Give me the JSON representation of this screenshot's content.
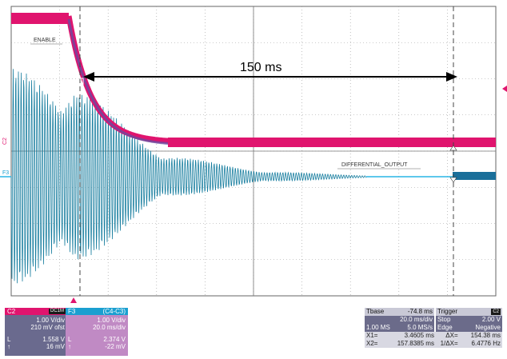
{
  "scope": {
    "span_label": "150 ms",
    "enable_label": "ENABLE",
    "output_label": "DIFFERENTIAL_OUTPUT",
    "c2_marker": "C2",
    "f3_marker": "F3",
    "colors": {
      "c2": "#e0146e",
      "f3": "#1a7fa0",
      "grid": "#9a9a9a",
      "cursor": "#444444"
    }
  },
  "channels": {
    "c2": {
      "name": "C2",
      "badge": "DC1M",
      "vdiv": "1.00 V/div",
      "offset": "210 mV ofst",
      "val1_label": "L",
      "val1": "1.558 V",
      "val2_label": "↑",
      "val2": "16 mV"
    },
    "f3": {
      "name": "F3",
      "formula": "(C4-C3)",
      "vdiv": "1.00 V/div",
      "tdiv": "20.0 ms/div",
      "val1_label": "L",
      "val1": "2.374 V",
      "val2_label": "↑",
      "val2": "-22 mV"
    }
  },
  "timebase": {
    "tbase_label": "Tbase",
    "tbase_value": "-74.8 ms",
    "trigger_label": "Trigger",
    "trigger_badge": "C2",
    "row1_left": "20.0 ms/div",
    "row1_mid": "Stop",
    "row1_right": "2.00 V",
    "row2_a": "1.00 MS",
    "row2_b": "5.0 MS/s",
    "row2_mid": "Edge",
    "row2_right": "Negative",
    "x1_label": "X1=",
    "x1_value": "3.4605 ms",
    "dx_label": "ΔX=",
    "dx_value": "154.38 ms",
    "x2_label": "X2=",
    "x2_value": "157.8385 ms",
    "inv_label": "1/ΔX=",
    "inv_value": "6.4776 Hz"
  }
}
